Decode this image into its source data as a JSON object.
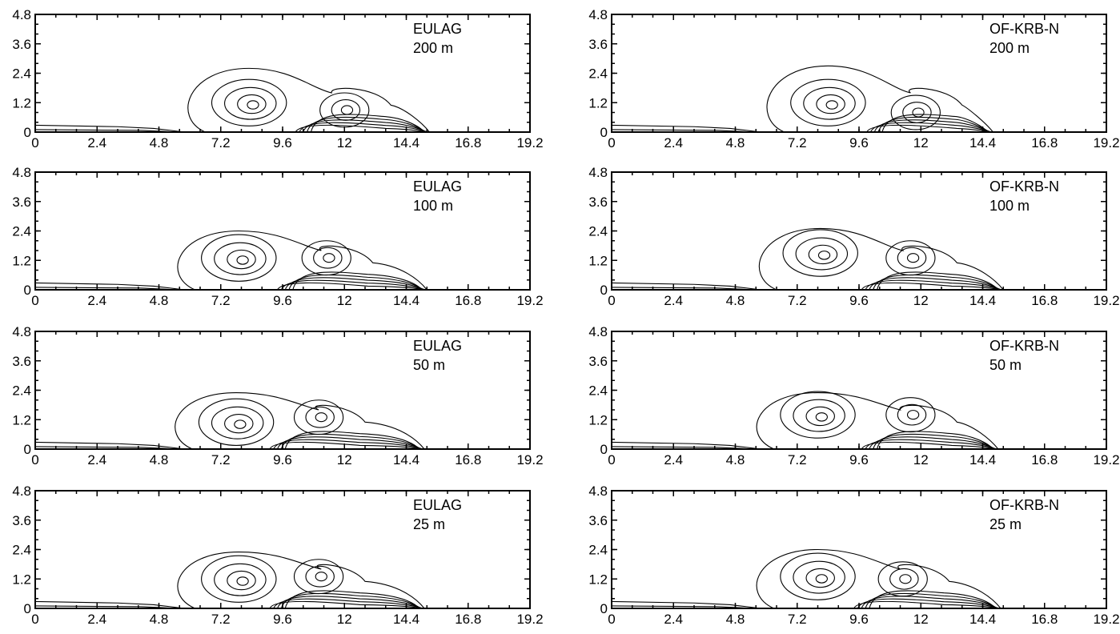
{
  "chart_data": [
    {
      "type": "contour",
      "model": "EULAG",
      "resolution": "200 m",
      "xlim": [
        0,
        19.2
      ],
      "ylim": [
        0,
        4.8
      ],
      "x_ticks": [
        "0",
        "2.4",
        "4.8",
        "7.2",
        "9.6",
        "12",
        "14.4",
        "16.8",
        "19.2"
      ],
      "y_ticks": [
        "0",
        "1.2",
        "2.4",
        "3.6",
        "4.8"
      ],
      "front_x": 15.3,
      "head_center": [
        8.3,
        1.2
      ],
      "head_top": 2.6,
      "second_vortex_center": [
        12.0,
        0.9
      ]
    },
    {
      "type": "contour",
      "model": "OF-KRB-N",
      "resolution": "200 m",
      "xlim": [
        0,
        19.2
      ],
      "ylim": [
        0,
        4.8
      ],
      "x_ticks": [
        "0",
        "2.4",
        "4.8",
        "7.2",
        "9.6",
        "12",
        "14.4",
        "16.8",
        "19.2"
      ],
      "y_ticks": [
        "0",
        "1.2",
        "2.4",
        "3.6",
        "4.8"
      ],
      "front_x": 14.8,
      "head_center": [
        8.4,
        1.2
      ],
      "head_top": 2.7,
      "second_vortex_center": [
        11.8,
        0.8
      ]
    },
    {
      "type": "contour",
      "model": "EULAG",
      "resolution": "100 m",
      "xlim": [
        0,
        19.2
      ],
      "ylim": [
        0,
        4.8
      ],
      "x_ticks": [
        "0",
        "2.4",
        "4.8",
        "7.2",
        "9.6",
        "12",
        "14.4",
        "16.8",
        "19.2"
      ],
      "y_ticks": [
        "0",
        "1.2",
        "2.4",
        "3.6",
        "4.8"
      ],
      "front_x": 15.2,
      "head_center": [
        7.9,
        1.3
      ],
      "head_top": 2.4,
      "second_vortex_center": [
        11.3,
        1.3
      ]
    },
    {
      "type": "contour",
      "model": "OF-KRB-N",
      "resolution": "100 m",
      "xlim": [
        0,
        19.2
      ],
      "ylim": [
        0,
        4.8
      ],
      "x_ticks": [
        "0",
        "2.4",
        "4.8",
        "7.2",
        "9.6",
        "12",
        "14.4",
        "16.8",
        "19.2"
      ],
      "y_ticks": [
        "0",
        "1.2",
        "2.4",
        "3.6",
        "4.8"
      ],
      "front_x": 15.2,
      "head_center": [
        8.1,
        1.5
      ],
      "head_top": 2.5,
      "second_vortex_center": [
        11.6,
        1.3
      ]
    },
    {
      "type": "contour",
      "model": "EULAG",
      "resolution": "50 m",
      "xlim": [
        0,
        19.2
      ],
      "ylim": [
        0,
        4.8
      ],
      "x_ticks": [
        "0",
        "2.4",
        "4.8",
        "7.2",
        "9.6",
        "12",
        "14.4",
        "16.8",
        "19.2"
      ],
      "y_ticks": [
        "0",
        "1.2",
        "2.4",
        "3.6",
        "4.8"
      ],
      "front_x": 15.1,
      "head_center": [
        7.8,
        1.1
      ],
      "head_top": 2.3,
      "second_vortex_center": [
        11.0,
        1.3
      ]
    },
    {
      "type": "contour",
      "model": "OF-KRB-N",
      "resolution": "50 m",
      "xlim": [
        0,
        19.2
      ],
      "ylim": [
        0,
        4.8
      ],
      "x_ticks": [
        "0",
        "2.4",
        "4.8",
        "7.2",
        "9.6",
        "12",
        "14.4",
        "16.8",
        "19.2"
      ],
      "y_ticks": [
        "0",
        "1.2",
        "2.4",
        "3.6",
        "4.8"
      ],
      "front_x": 15.0,
      "head_center": [
        8.0,
        1.4
      ],
      "head_top": 2.3,
      "second_vortex_center": [
        11.6,
        1.4
      ]
    },
    {
      "type": "contour",
      "model": "EULAG",
      "resolution": "25 m",
      "xlim": [
        0,
        19.2
      ],
      "ylim": [
        0,
        4.8
      ],
      "x_ticks": [
        "0",
        "2.4",
        "4.8",
        "7.2",
        "9.6",
        "12",
        "14.4",
        "16.8",
        "19.2"
      ],
      "y_ticks": [
        "0",
        "1.2",
        "2.4",
        "3.6",
        "4.8"
      ],
      "front_x": 15.1,
      "head_center": [
        7.9,
        1.2
      ],
      "head_top": 2.3,
      "second_vortex_center": [
        11.0,
        1.3
      ]
    },
    {
      "type": "contour",
      "model": "OF-KRB-N",
      "resolution": "25 m",
      "xlim": [
        0,
        19.2
      ],
      "ylim": [
        0,
        4.8
      ],
      "x_ticks": [
        "0",
        "2.4",
        "4.8",
        "7.2",
        "9.6",
        "12",
        "14.4",
        "16.8",
        "19.2"
      ],
      "y_ticks": [
        "0",
        "1.2",
        "2.4",
        "3.6",
        "4.8"
      ],
      "front_x": 15.1,
      "head_center": [
        8.0,
        1.3
      ],
      "head_top": 2.4,
      "second_vortex_center": [
        11.3,
        1.2
      ]
    }
  ]
}
